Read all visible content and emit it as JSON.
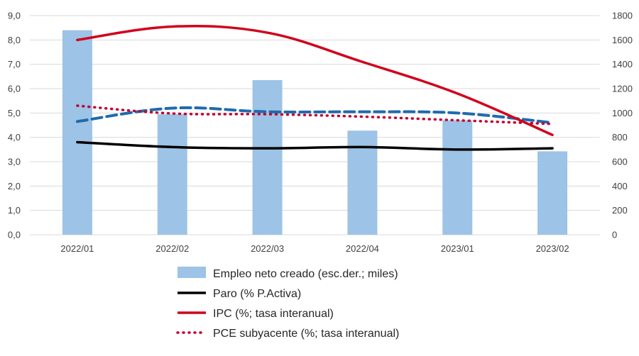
{
  "chart_data": {
    "type": "bar+line",
    "title": "",
    "xlabel": "",
    "ylabel": "",
    "categories": [
      "2022/01",
      "2022/02",
      "2022/03",
      "2022/04",
      "2023/01",
      "2023/02"
    ],
    "y_left": {
      "min": 0,
      "max": 9,
      "step": 1,
      "ticks": [
        "0,0",
        "1,0",
        "2,0",
        "3,0",
        "4,0",
        "5,0",
        "6,0",
        "7,0",
        "8,0",
        "9,0"
      ]
    },
    "y_right": {
      "min": 0,
      "max": 1800,
      "step": 200,
      "ticks": [
        "0",
        "200",
        "400",
        "600",
        "800",
        "1000",
        "1200",
        "1400",
        "1600",
        "1800"
      ]
    },
    "grid": true,
    "legend_position": "bottom",
    "series": [
      {
        "name": "Empleo neto creado (esc.der.; miles)",
        "kind": "bar",
        "axis": "right",
        "color": "#9DC3E6",
        "values": [
          1680,
          990,
          1270,
          855,
          940,
          685
        ]
      },
      {
        "name": "Paro (% P.Activa)",
        "kind": "line",
        "axis": "left",
        "color": "#000000",
        "style": "solid",
        "values": [
          3.8,
          3.6,
          3.55,
          3.6,
          3.5,
          3.55
        ]
      },
      {
        "name": "IPC (%; tasa interanual)",
        "kind": "line",
        "axis": "left",
        "color": "#D0021B",
        "style": "solid",
        "values": [
          8.0,
          8.55,
          8.3,
          7.1,
          5.8,
          4.1
        ]
      },
      {
        "name": "PCE subyacente (%; tasa interanual)",
        "kind": "line",
        "axis": "left",
        "color": "#C00030",
        "style": "dotted",
        "values": [
          5.3,
          4.98,
          4.95,
          4.85,
          4.7,
          4.55
        ]
      },
      {
        "name": "",
        "kind": "line",
        "axis": "left",
        "color": "#1F6AAE",
        "style": "dashed",
        "values": [
          4.65,
          5.2,
          5.05,
          5.05,
          5.0,
          4.6
        ]
      }
    ]
  }
}
